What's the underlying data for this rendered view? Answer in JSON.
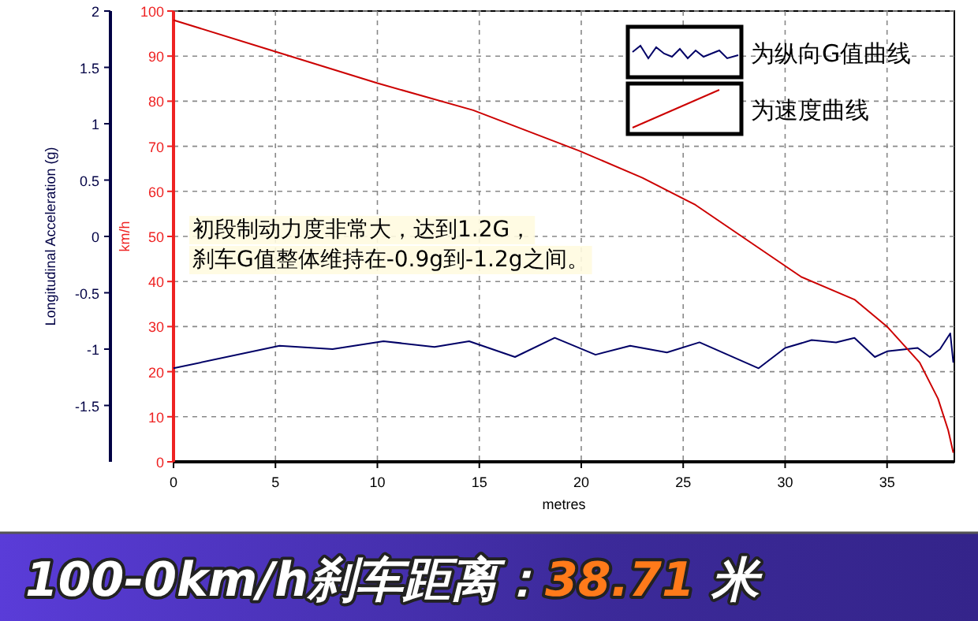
{
  "chart_data": {
    "type": "line",
    "title": "100-0km/h刹车距离：38.71 米",
    "xlabel": "metres",
    "ylabel": "Longitudinal Acceleration (g)",
    "y2label": "km/h",
    "x": [
      0,
      5.2,
      7.8,
      10.3,
      12.8,
      14.5,
      16.75,
      18.7,
      20.7,
      22.4,
      24.2,
      25.8,
      28.7,
      30.0,
      31.3,
      32.5,
      33.4,
      34.4,
      35.0,
      36.5,
      37.1,
      37.6,
      38.1,
      38.25
    ],
    "series": [
      {
        "name": "为纵向G值曲线",
        "color": "#000066",
        "values": [
          -1.17,
          -0.97,
          -1.0,
          -0.93,
          -0.98,
          -0.93,
          -1.07,
          -0.9,
          -1.05,
          -0.97,
          -1.03,
          -0.94,
          -1.17,
          -0.99,
          -0.92,
          -0.94,
          -0.9,
          -1.07,
          -1.02,
          -0.99,
          -1.07,
          -1.0,
          -0.86,
          -1.12
        ]
      },
      {
        "name": "为速度曲线",
        "color": "#cc0000",
        "axis": "y2",
        "x": [
          0,
          5,
          10,
          14.7,
          19.9,
          23.0,
          25.6,
          28.2,
          30.8,
          33.4,
          35.0,
          36.6,
          37.5,
          38.0,
          38.25
        ],
        "values": [
          98,
          91,
          84,
          78,
          69,
          63,
          57,
          49,
          41,
          36,
          30,
          22,
          14,
          7,
          2
        ]
      }
    ],
    "xlim": [
      0,
      38.3
    ],
    "xticks": [
      0,
      5,
      10,
      15,
      20,
      25,
      30,
      35
    ],
    "ylim": [
      -2,
      2
    ],
    "yticks": [
      -1.5,
      -1,
      -0.5,
      0,
      0.5,
      1,
      1.5,
      2
    ],
    "y2lim": [
      0,
      100
    ],
    "y2ticks": [
      0,
      10,
      20,
      30,
      40,
      50,
      60,
      70,
      80,
      90,
      100
    ],
    "annotations": [
      "初段制动力度非常大，达到1.2G，",
      "刹车G值整体维持在-0.9g到-1.2g之间。"
    ],
    "grid": true,
    "legend": "top right"
  }
}
